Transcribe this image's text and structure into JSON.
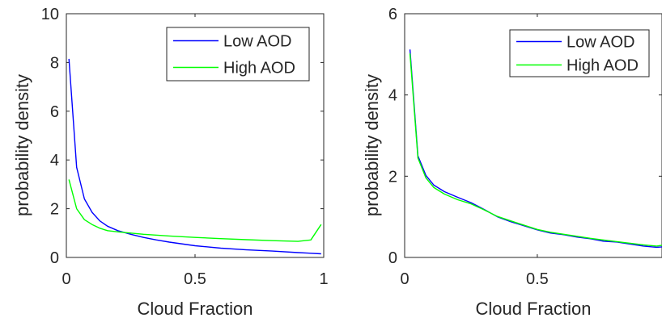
{
  "chart_data": [
    {
      "type": "line",
      "title": "",
      "xlabel": "Cloud Fraction",
      "ylabel": "probability density",
      "xlim": [
        0,
        1
      ],
      "ylim": [
        0,
        10
      ],
      "xticks": [
        0,
        0.5,
        1
      ],
      "xtick_labels": [
        "0",
        "0.5",
        "1"
      ],
      "yticks": [
        0,
        2,
        4,
        6,
        8,
        10
      ],
      "ytick_labels": [
        "0",
        "2",
        "4",
        "6",
        "8",
        "10"
      ],
      "grid": false,
      "legend_position": "top-right",
      "series": [
        {
          "name": "Low AOD",
          "color": "#0000ff",
          "x": [
            0.01,
            0.04,
            0.07,
            0.1,
            0.13,
            0.16,
            0.2,
            0.25,
            0.3,
            0.35,
            0.4,
            0.5,
            0.6,
            0.7,
            0.8,
            0.9,
            0.99
          ],
          "y": [
            8.15,
            3.7,
            2.4,
            1.85,
            1.5,
            1.28,
            1.1,
            0.95,
            0.82,
            0.72,
            0.63,
            0.48,
            0.38,
            0.31,
            0.26,
            0.2,
            0.15
          ]
        },
        {
          "name": "High AOD",
          "color": "#00ff00",
          "x": [
            0.01,
            0.04,
            0.07,
            0.1,
            0.13,
            0.16,
            0.2,
            0.25,
            0.3,
            0.4,
            0.5,
            0.6,
            0.7,
            0.8,
            0.9,
            0.95,
            0.99
          ],
          "y": [
            3.2,
            2.0,
            1.55,
            1.35,
            1.2,
            1.1,
            1.05,
            1.0,
            0.95,
            0.88,
            0.82,
            0.77,
            0.73,
            0.69,
            0.66,
            0.72,
            1.35
          ]
        }
      ]
    },
    {
      "type": "line",
      "title": "",
      "xlabel": "Cloud Fraction",
      "ylabel": "probability density",
      "xlim": [
        0,
        0.97
      ],
      "ylim": [
        0,
        6
      ],
      "xticks": [
        0,
        0.5
      ],
      "xtick_labels": [
        "0",
        "0.5"
      ],
      "yticks": [
        0,
        2,
        4,
        6
      ],
      "ytick_labels": [
        "0",
        "2",
        "4",
        "6"
      ],
      "grid": false,
      "legend_position": "top-right",
      "series": [
        {
          "name": "Low AOD",
          "color": "#0000ff",
          "x": [
            0.02,
            0.05,
            0.08,
            0.11,
            0.15,
            0.2,
            0.25,
            0.3,
            0.35,
            0.4,
            0.5,
            0.55,
            0.6,
            0.65,
            0.7,
            0.75,
            0.8,
            0.85,
            0.9,
            0.95,
            0.97
          ],
          "y": [
            5.12,
            2.5,
            2.02,
            1.78,
            1.62,
            1.48,
            1.35,
            1.18,
            1.0,
            0.88,
            0.68,
            0.6,
            0.56,
            0.5,
            0.46,
            0.4,
            0.38,
            0.33,
            0.28,
            0.25,
            0.26
          ]
        },
        {
          "name": "High AOD",
          "color": "#00ff00",
          "x": [
            0.02,
            0.05,
            0.08,
            0.11,
            0.15,
            0.2,
            0.25,
            0.3,
            0.35,
            0.4,
            0.5,
            0.55,
            0.6,
            0.65,
            0.7,
            0.75,
            0.8,
            0.85,
            0.9,
            0.95,
            0.97
          ],
          "y": [
            5.02,
            2.45,
            1.96,
            1.72,
            1.56,
            1.42,
            1.32,
            1.17,
            1.01,
            0.9,
            0.69,
            0.62,
            0.57,
            0.52,
            0.47,
            0.43,
            0.39,
            0.35,
            0.31,
            0.28,
            0.3
          ]
        }
      ]
    }
  ]
}
